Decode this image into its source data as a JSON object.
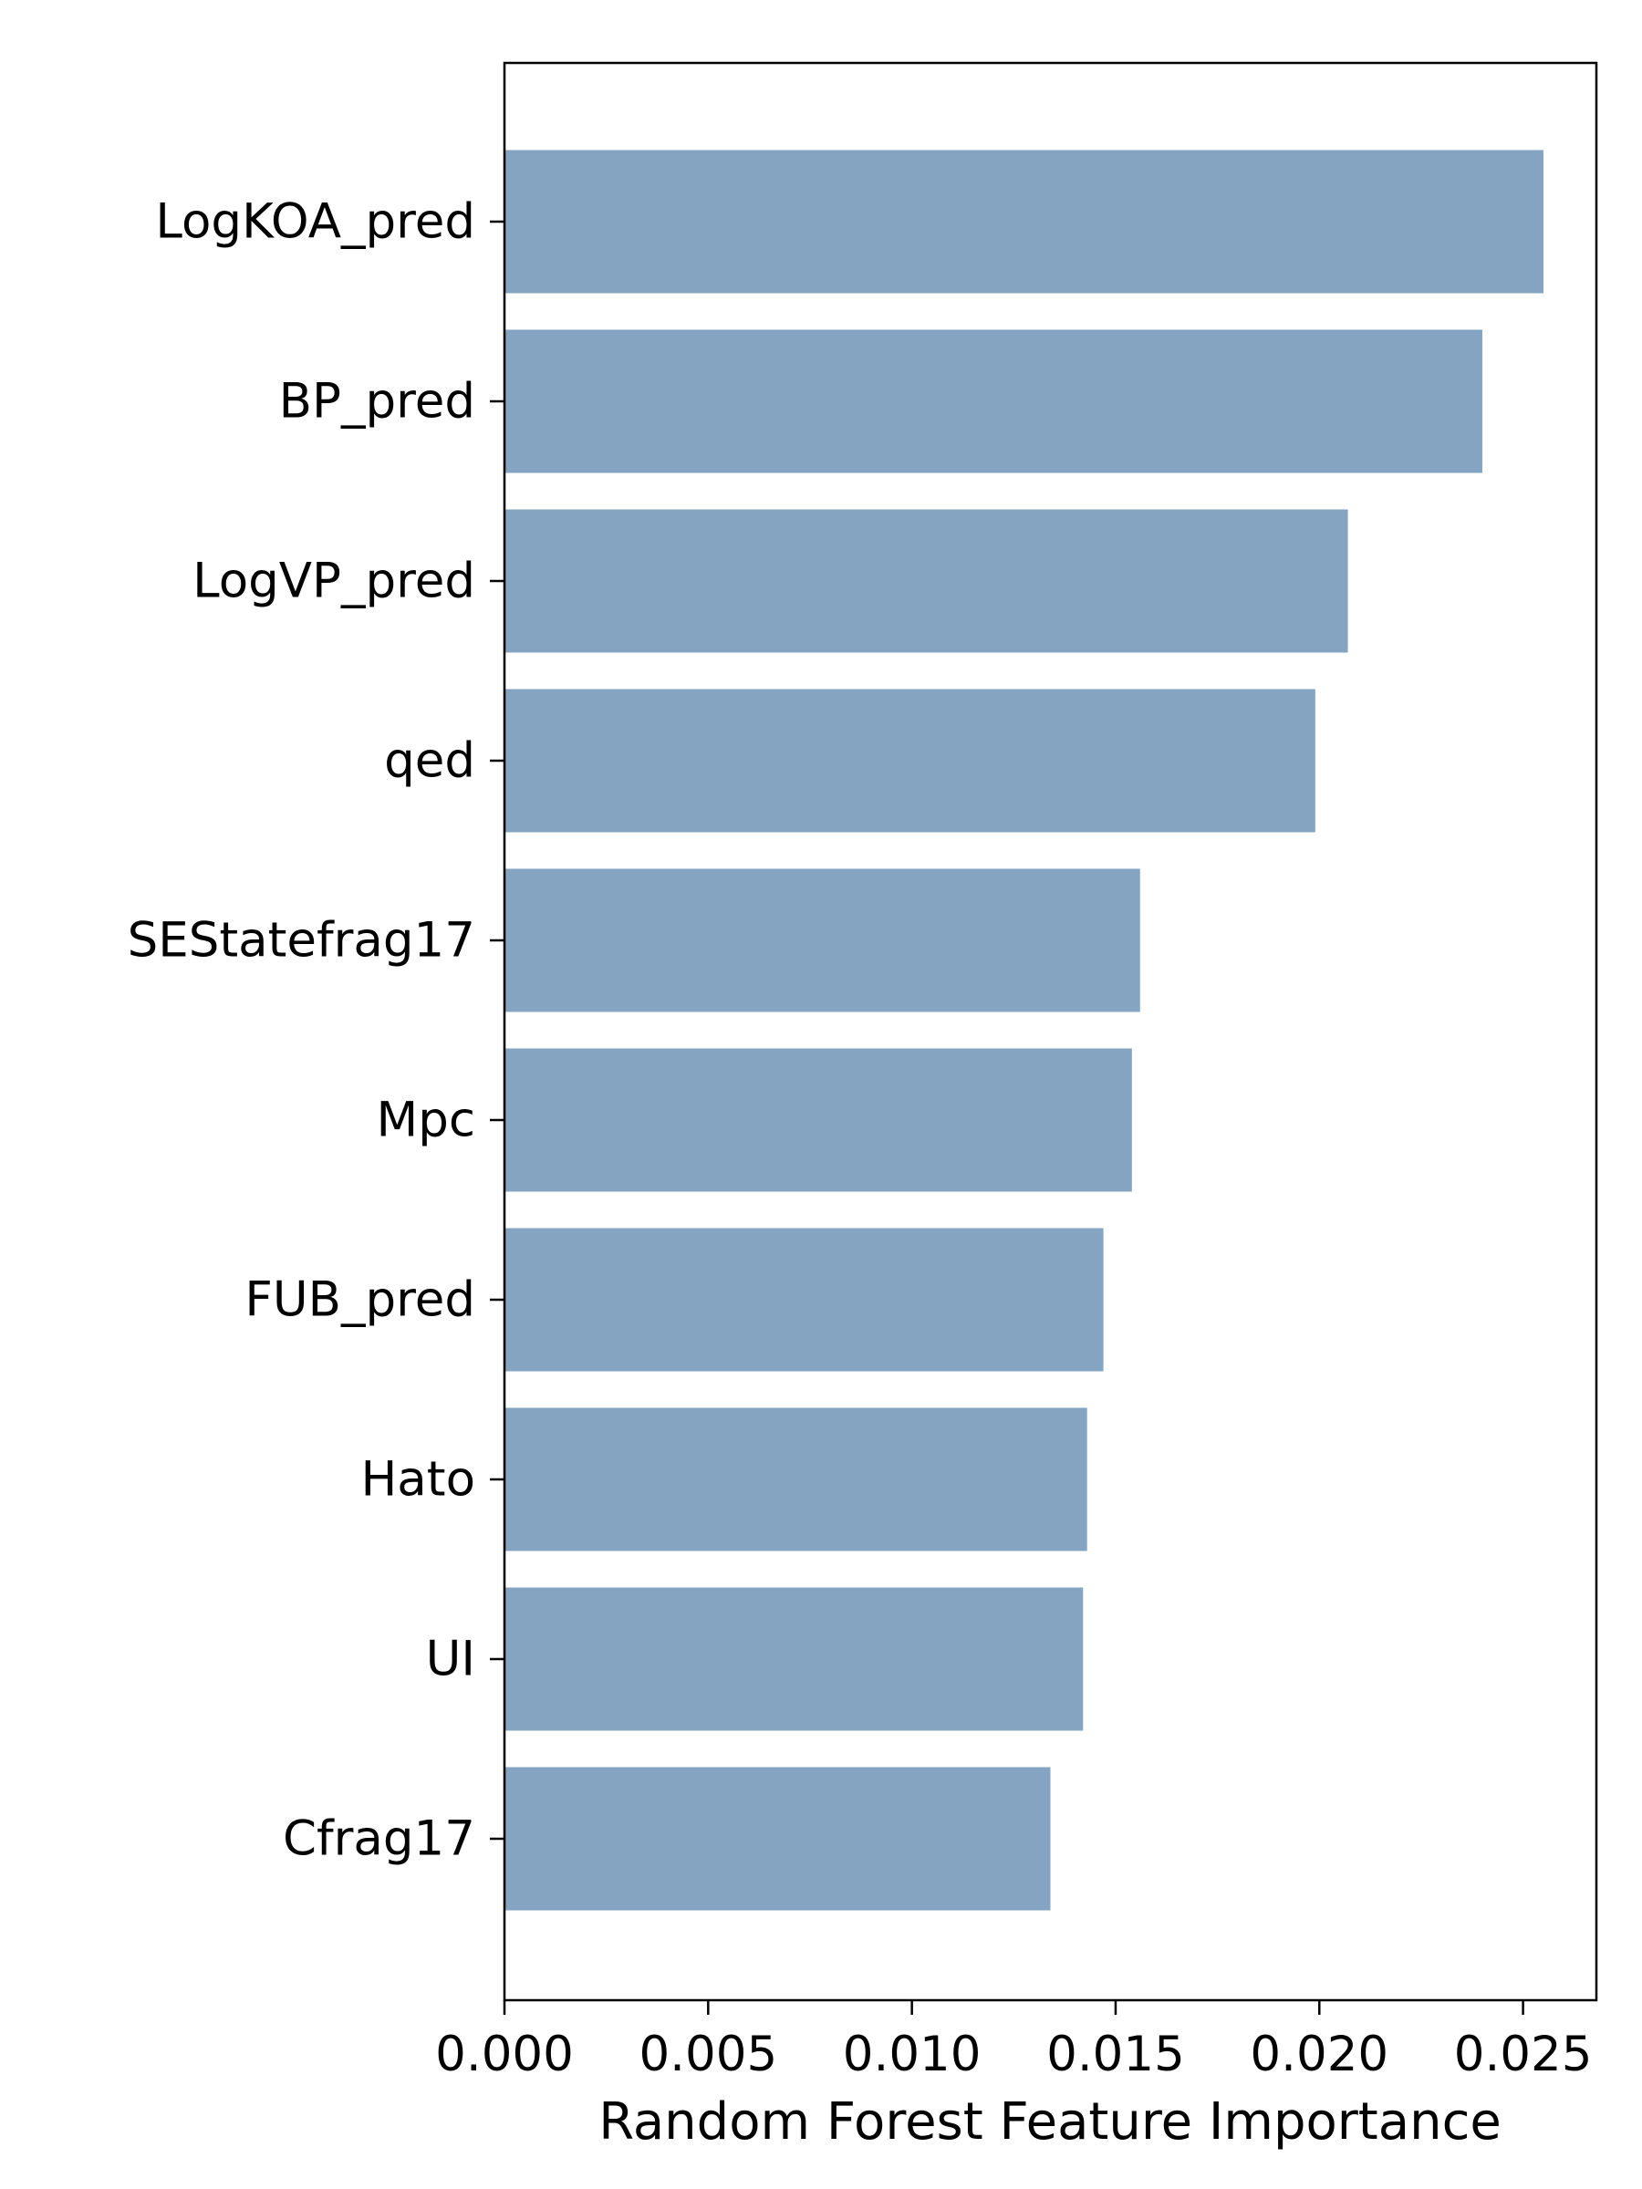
{
  "chart_data": {
    "type": "bar",
    "orientation": "horizontal",
    "title": "",
    "xlabel": "Random Forest Feature Importance",
    "ylabel": "",
    "categories": [
      "LogKOA_pred",
      "BP_pred",
      "LogVP_pred",
      "qed",
      "SEStatefrag17",
      "Mpc",
      "FUB_pred",
      "Hato",
      "UI",
      "Cfrag17"
    ],
    "values": [
      0.0255,
      0.024,
      0.0207,
      0.0199,
      0.0156,
      0.0154,
      0.0147,
      0.0143,
      0.0142,
      0.0134
    ],
    "xlim": [
      0.0,
      0.0268
    ],
    "x_ticks": [
      "0.000",
      "0.005",
      "0.010",
      "0.015",
      "0.020",
      "0.025"
    ],
    "x_tick_values": [
      0.0,
      0.005,
      0.01,
      0.015,
      0.02,
      0.025
    ],
    "grid": false,
    "bar_color": "#84a4c1"
  }
}
